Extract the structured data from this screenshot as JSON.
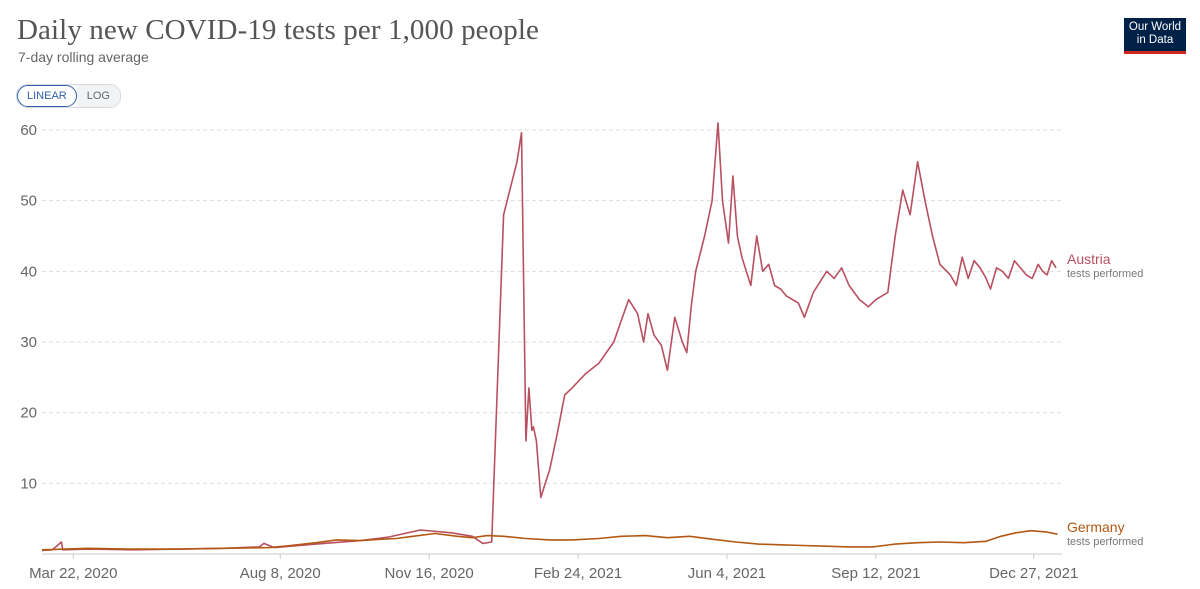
{
  "header": {
    "title": "Daily new COVID-19 tests per 1,000 people",
    "subtitle": "7-day rolling average"
  },
  "controls": {
    "linear_label": "LINEAR",
    "log_label": "LOG"
  },
  "logo": {
    "line1": "Our World",
    "line2": "in Data"
  },
  "chart_data": {
    "type": "line",
    "ylim": [
      0,
      60
    ],
    "yticks": [
      0,
      10,
      20,
      30,
      40,
      50,
      60
    ],
    "ytick_labels": [
      "",
      "10",
      "20",
      "30",
      "40",
      "50",
      "60"
    ],
    "xlim": [
      "2020-03-01",
      "2022-01-15"
    ],
    "xticks": [
      "2020-03-22",
      "2020-08-08",
      "2020-11-16",
      "2021-02-24",
      "2021-06-04",
      "2021-09-12",
      "2021-12-27"
    ],
    "xtick_labels": [
      "Mar 22, 2020",
      "Aug 8, 2020",
      "Nov 16, 2020",
      "Feb 24, 2021",
      "Jun 4, 2021",
      "Sep 12, 2021",
      "Dec 27, 2021"
    ],
    "grid": "horizontal-dashed",
    "legend": "right-inline",
    "series": [
      {
        "name": "Austria",
        "sublabel": "tests performed",
        "color": "#b85060",
        "x": [
          "2020-03-01",
          "2020-03-08",
          "2020-03-14",
          "2020-03-15",
          "2020-04-01",
          "2020-05-01",
          "2020-06-01",
          "2020-07-01",
          "2020-07-25",
          "2020-07-28",
          "2020-08-04",
          "2020-09-01",
          "2020-10-01",
          "2020-10-20",
          "2020-11-10",
          "2020-12-01",
          "2020-12-15",
          "2020-12-22",
          "2020-12-28",
          "2021-01-05",
          "2021-01-14",
          "2021-01-17",
          "2021-01-20",
          "2021-01-22",
          "2021-01-24",
          "2021-01-25",
          "2021-01-27",
          "2021-01-30",
          "2021-02-02",
          "2021-02-05",
          "2021-02-10",
          "2021-02-15",
          "2021-02-20",
          "2021-03-01",
          "2021-03-10",
          "2021-03-20",
          "2021-03-25",
          "2021-03-30",
          "2021-04-05",
          "2021-04-09",
          "2021-04-12",
          "2021-04-16",
          "2021-04-21",
          "2021-04-25",
          "2021-04-30",
          "2021-05-05",
          "2021-05-08",
          "2021-05-11",
          "2021-05-14",
          "2021-05-20",
          "2021-05-25",
          "2021-05-29",
          "2021-06-01",
          "2021-06-05",
          "2021-06-08",
          "2021-06-11",
          "2021-06-14",
          "2021-06-17",
          "2021-06-20",
          "2021-06-24",
          "2021-06-28",
          "2021-07-02",
          "2021-07-06",
          "2021-07-10",
          "2021-07-14",
          "2021-07-18",
          "2021-07-22",
          "2021-07-26",
          "2021-08-01",
          "2021-08-10",
          "2021-08-15",
          "2021-08-20",
          "2021-08-25",
          "2021-09-01",
          "2021-09-07",
          "2021-09-12",
          "2021-09-16",
          "2021-09-20",
          "2021-09-25",
          "2021-09-30",
          "2021-10-05",
          "2021-10-10",
          "2021-10-15",
          "2021-10-20",
          "2021-10-25",
          "2021-11-01",
          "2021-11-05",
          "2021-11-09",
          "2021-11-13",
          "2021-11-17",
          "2021-11-21",
          "2021-11-25",
          "2021-11-28",
          "2021-12-02",
          "2021-12-06",
          "2021-12-10",
          "2021-12-14",
          "2021-12-18",
          "2021-12-22",
          "2021-12-26",
          "2021-12-30",
          "2022-01-02",
          "2022-01-05",
          "2022-01-08",
          "2022-01-11"
        ],
        "y": [
          0.5,
          0.6,
          1.7,
          0.6,
          0.7,
          0.6,
          0.7,
          0.8,
          1.0,
          1.5,
          0.9,
          1.4,
          1.9,
          2.4,
          3.4,
          3.0,
          2.5,
          1.5,
          1.7,
          48.0,
          55.5,
          59.6,
          16.0,
          23.5,
          17.5,
          18.0,
          16.0,
          8.0,
          10.0,
          12.0,
          17.0,
          22.5,
          23.5,
          25.5,
          27.0,
          30.0,
          33.0,
          36.0,
          34.0,
          30.0,
          34.0,
          31.0,
          29.5,
          26.0,
          33.5,
          30.0,
          28.5,
          35.0,
          40.0,
          45.0,
          50.0,
          61.0,
          50.0,
          44.0,
          53.5,
          45.0,
          42.0,
          40.0,
          38.0,
          45.0,
          40.0,
          41.0,
          38.0,
          37.5,
          36.5,
          36.0,
          35.5,
          33.5,
          37.0,
          40.0,
          39.0,
          40.5,
          38.0,
          36.0,
          35.0,
          36.0,
          36.5,
          37.0,
          45.0,
          51.5,
          48.0,
          55.5,
          50.0,
          45.0,
          41.0,
          39.5,
          38.0,
          42.0,
          39.0,
          41.5,
          40.5,
          39.0,
          37.5,
          40.5,
          40.0,
          39.0,
          41.5,
          40.5,
          39.5,
          39.0,
          41.0,
          40.0,
          39.5,
          41.5,
          40.5
        ]
      },
      {
        "name": "Germany",
        "sublabel": "tests performed",
        "color": "#b35813",
        "x": [
          "2020-03-01",
          "2020-04-01",
          "2020-05-01",
          "2020-06-01",
          "2020-07-01",
          "2020-08-01",
          "2020-08-15",
          "2020-09-01",
          "2020-09-15",
          "2020-10-01",
          "2020-10-15",
          "2020-10-25",
          "2020-11-05",
          "2020-11-20",
          "2020-12-05",
          "2020-12-15",
          "2020-12-25",
          "2021-01-05",
          "2021-01-20",
          "2021-02-05",
          "2021-02-20",
          "2021-03-10",
          "2021-03-25",
          "2021-04-10",
          "2021-04-25",
          "2021-05-10",
          "2021-05-25",
          "2021-06-10",
          "2021-06-25",
          "2021-07-10",
          "2021-07-25",
          "2021-08-10",
          "2021-08-25",
          "2021-09-10",
          "2021-09-25",
          "2021-10-10",
          "2021-10-25",
          "2021-11-10",
          "2021-11-25",
          "2021-12-05",
          "2021-12-15",
          "2021-12-25",
          "2022-01-05",
          "2022-01-12"
        ],
        "y": [
          0.6,
          0.8,
          0.7,
          0.7,
          0.8,
          0.9,
          1.2,
          1.6,
          2.0,
          1.9,
          2.1,
          2.2,
          2.5,
          2.9,
          2.5,
          2.3,
          2.6,
          2.5,
          2.2,
          2.0,
          2.0,
          2.2,
          2.5,
          2.6,
          2.3,
          2.5,
          2.1,
          1.7,
          1.4,
          1.3,
          1.2,
          1.1,
          1.0,
          1.0,
          1.4,
          1.6,
          1.7,
          1.6,
          1.8,
          2.5,
          3.0,
          3.3,
          3.1,
          2.8
        ]
      }
    ]
  }
}
